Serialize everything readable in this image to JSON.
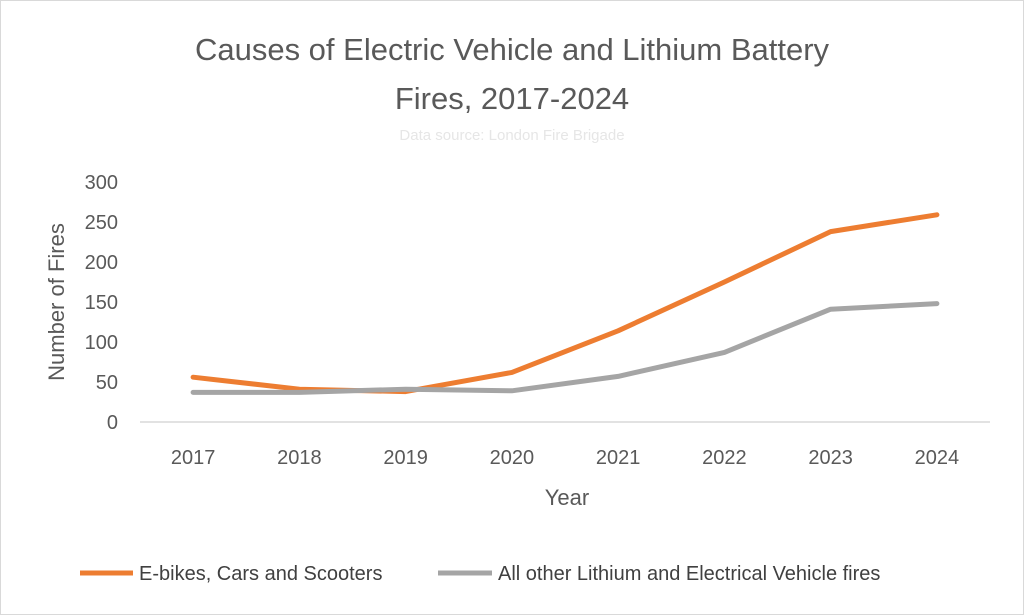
{
  "chart_data": {
    "type": "line",
    "title_lines": [
      "Causes of Electric Vehicle and Lithium Battery",
      "Fires, 2017-2024"
    ],
    "subtitle": "Data source: London Fire Brigade",
    "xlabel": "Year",
    "ylabel": "Number of Fires",
    "categories": [
      "2017",
      "2018",
      "2019",
      "2020",
      "2021",
      "2022",
      "2023",
      "2024"
    ],
    "ylim": [
      0,
      300
    ],
    "yticks": [
      0,
      50,
      100,
      150,
      200,
      250,
      300
    ],
    "grid": false,
    "legend_position": "bottom",
    "series": [
      {
        "name": "E-bikes, Cars and Scooters",
        "color": "#ed7d31",
        "values": [
          56,
          41,
          38,
          62,
          114,
          175,
          238,
          259
        ]
      },
      {
        "name": "All other Lithium and Electrical Vehicle fires",
        "color": "#a5a5a5",
        "values": [
          37,
          37,
          41,
          39,
          57,
          87,
          141,
          148
        ]
      }
    ]
  }
}
